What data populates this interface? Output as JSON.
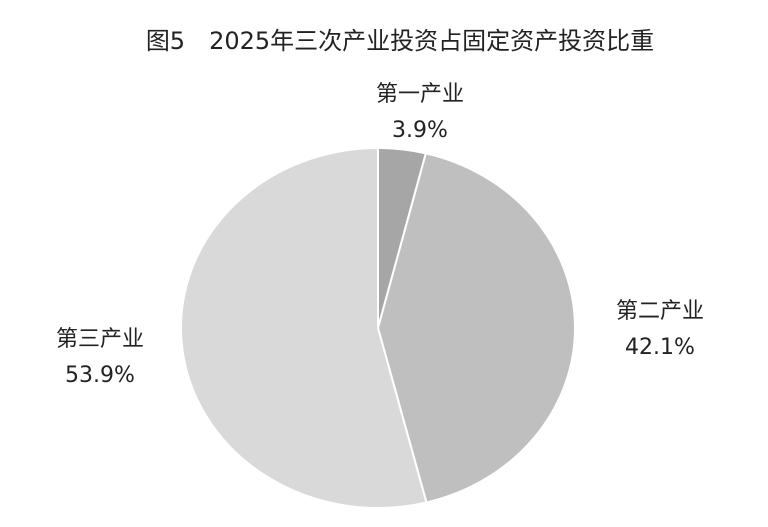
{
  "chart_data": {
    "type": "pie",
    "title": "图5　2025年三次产业投资占固定资产投资比重",
    "categories": [
      "第一产业",
      "第二产业",
      "第三产业"
    ],
    "values": [
      3.9,
      42.1,
      53.9
    ],
    "value_labels": [
      "3.9%",
      "42.1%",
      "53.9%"
    ],
    "colors": [
      "#a6a6a6",
      "#bfbfbf",
      "#d9d9d9"
    ]
  }
}
